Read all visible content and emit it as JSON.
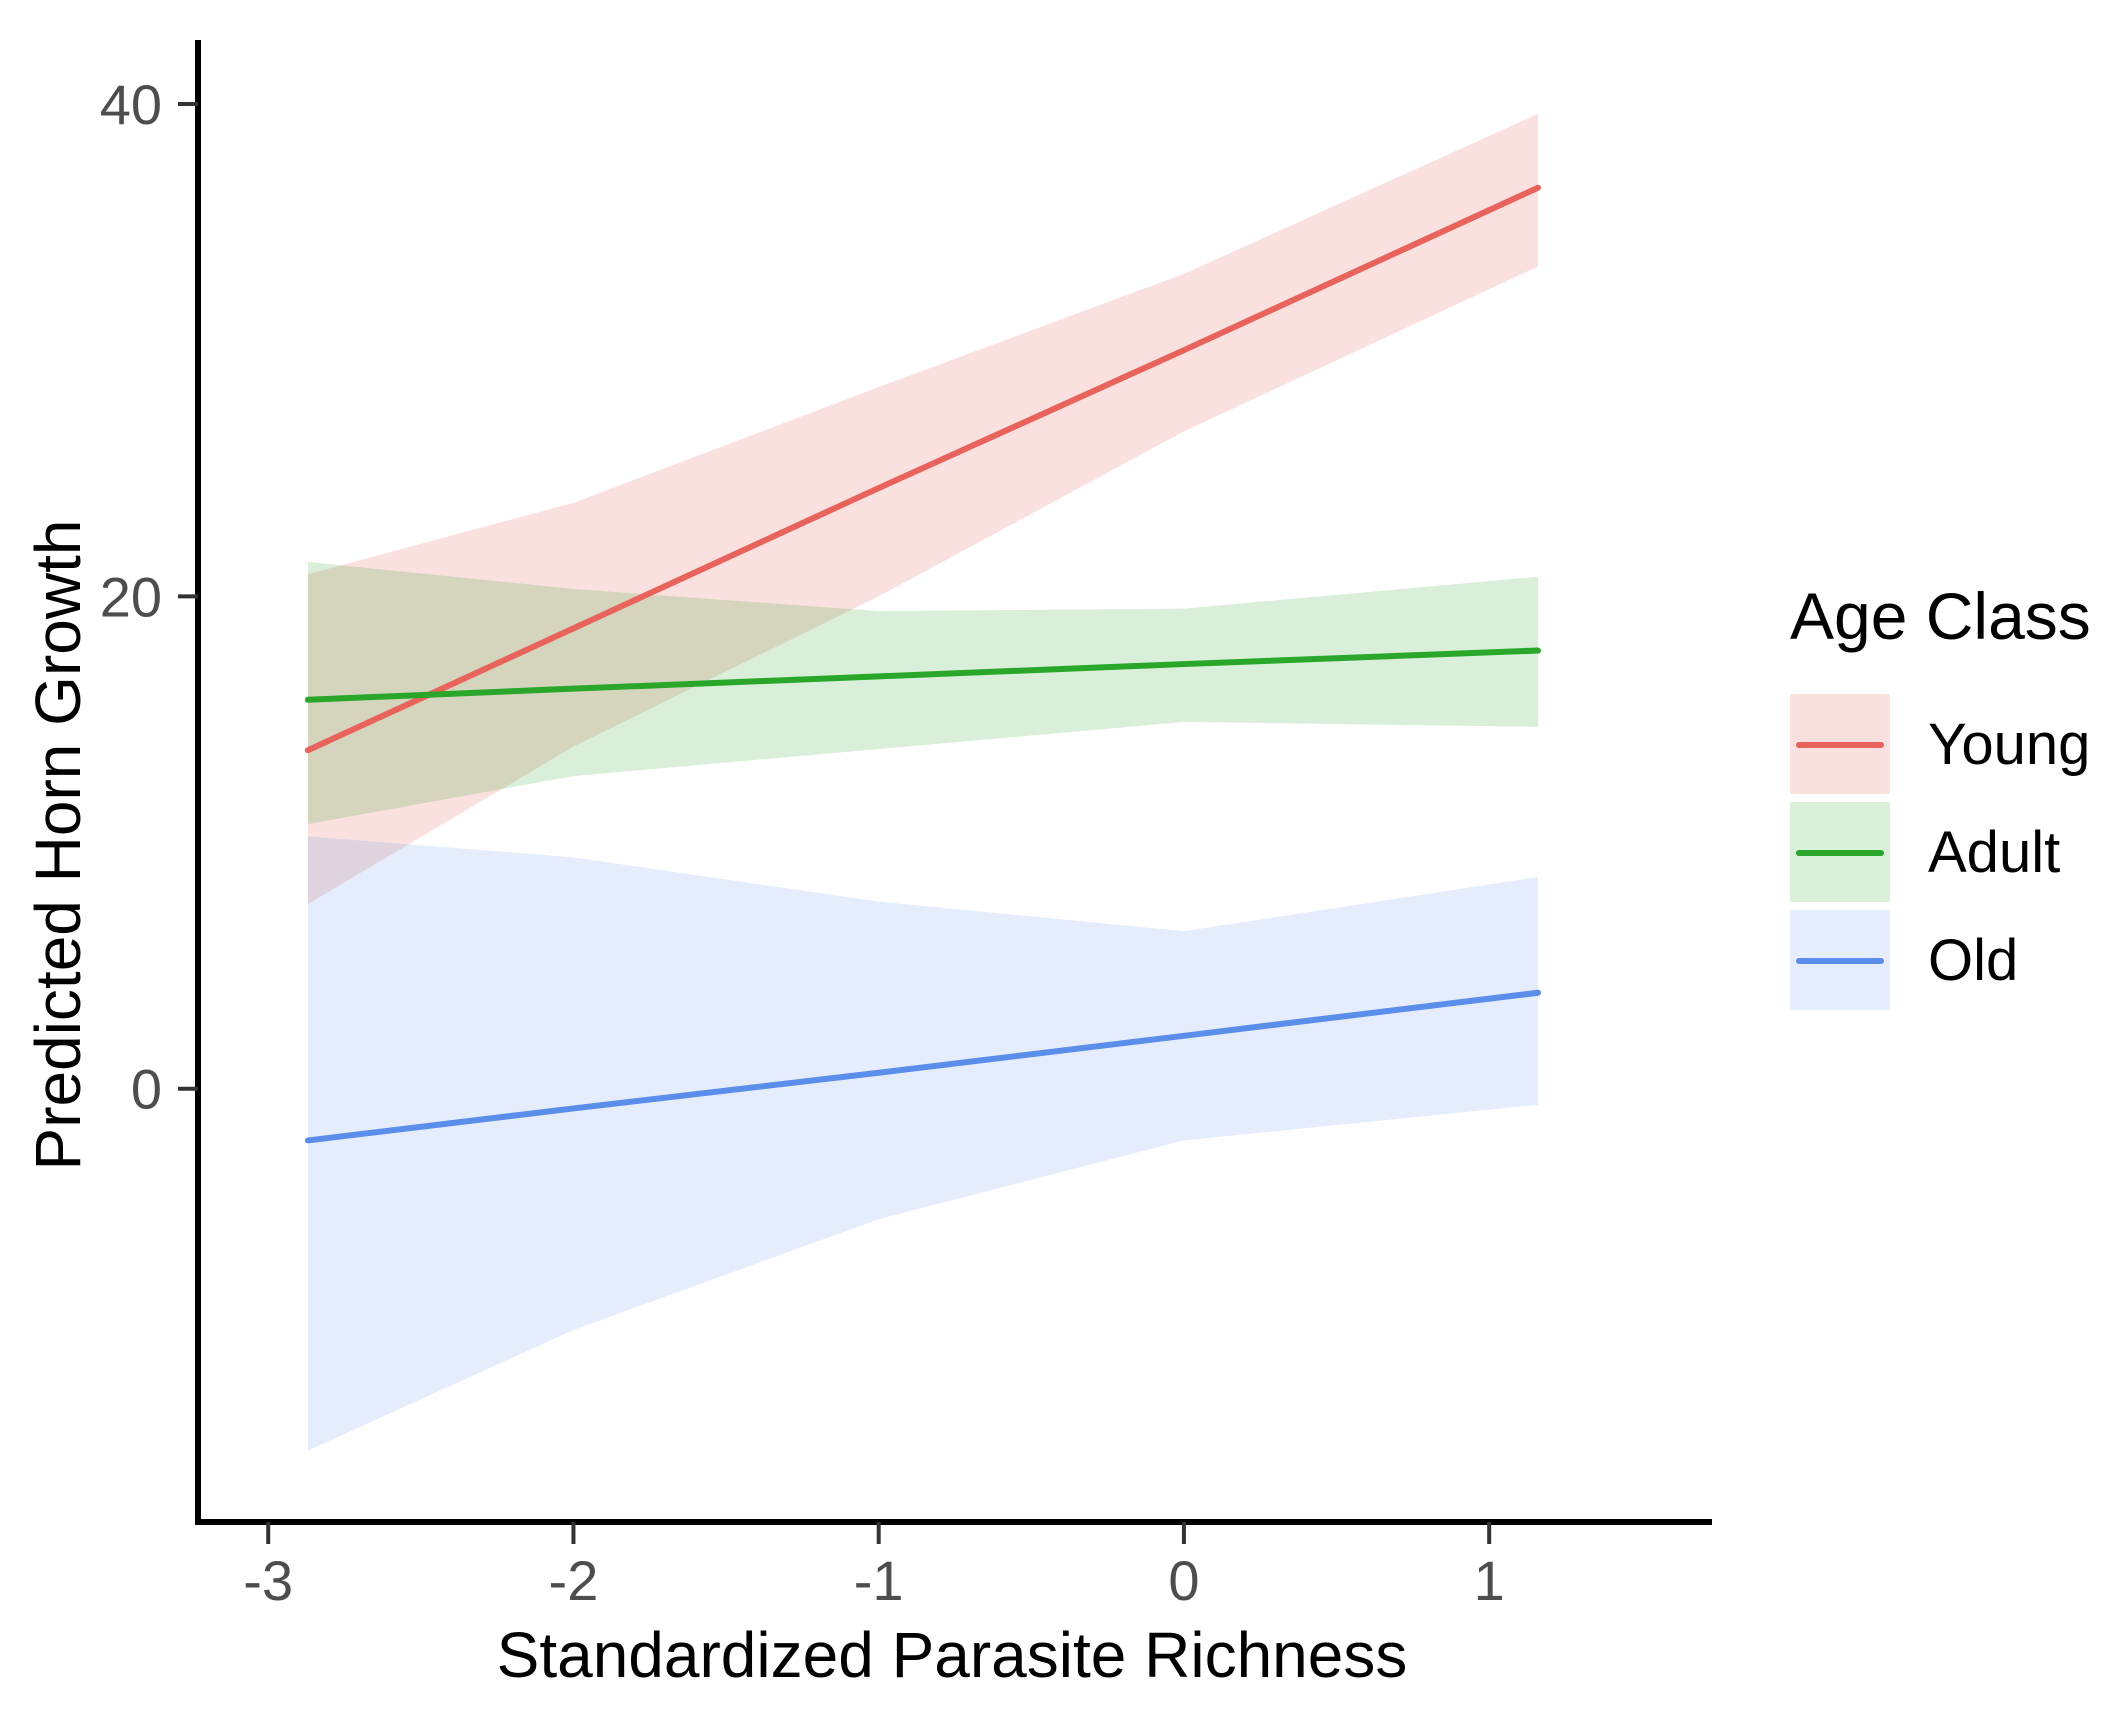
{
  "figure": {
    "background": "#ffffff"
  },
  "axes": {
    "xlabel": "Standardized Parasite Richness",
    "ylabel": "Predicted Horn Growth",
    "x_tick_labels": [
      "-3",
      "-2",
      "-1",
      "0",
      "1"
    ],
    "x_tick_values": [
      -3,
      -2,
      -1,
      0,
      1
    ],
    "y_tick_labels": [
      "0",
      "20",
      "40"
    ],
    "y_tick_values": [
      0,
      20,
      40
    ],
    "tick_label_color": "#4d4d4d",
    "axis_line_color": "#000000"
  },
  "legend": {
    "title": "Age Class",
    "entries": [
      {
        "label": "Young",
        "line_color": "#e8635c",
        "fill_color": "rgba(232,99,92,0.2)"
      },
      {
        "label": "Adult",
        "line_color": "#2aa62a",
        "fill_color": "rgba(42,166,42,0.18)"
      },
      {
        "label": "Old",
        "line_color": "#5b8deb",
        "fill_color": "rgba(91,141,235,0.16)"
      }
    ]
  },
  "chart_data": {
    "type": "line",
    "title": "",
    "xlabel": "Standardized Parasite Richness",
    "ylabel": "Predicted Horn Growth",
    "xlim": [
      -3.23,
      1.73
    ],
    "ylim": [
      -17.6,
      42.6
    ],
    "grid": false,
    "legend_position": "right",
    "legend_title": "Age Class",
    "series": [
      {
        "name": "Young",
        "line_color": "#e8635c",
        "fill_color": "rgba(232,99,92,0.2)",
        "x": [
          -2.87,
          -2.0,
          -1.0,
          0.0,
          1.16
        ],
        "y": [
          13.75,
          18.7,
          24.4,
          30.0,
          36.6
        ],
        "ymin": [
          7.5,
          13.9,
          20.0,
          26.7,
          33.4
        ],
        "ymax": [
          20.9,
          23.8,
          28.5,
          33.1,
          39.6
        ]
      },
      {
        "name": "Adult",
        "line_color": "#2aa62a",
        "fill_color": "rgba(42,166,42,0.18)",
        "x": [
          -2.87,
          -2.0,
          -1.0,
          0.0,
          1.16
        ],
        "y": [
          15.8,
          16.25,
          16.75,
          17.25,
          17.8
        ],
        "ymin": [
          10.75,
          12.7,
          13.8,
          14.9,
          14.7
        ],
        "ymax": [
          21.4,
          20.3,
          19.4,
          19.5,
          20.8
        ]
      },
      {
        "name": "Old",
        "line_color": "#5b8deb",
        "fill_color": "rgba(91,141,235,0.16)",
        "x": [
          -2.87,
          -2.0,
          -1.0,
          0.0,
          1.16
        ],
        "y": [
          -2.1,
          -0.8,
          0.65,
          2.15,
          3.9
        ],
        "ymin": [
          -14.7,
          -9.8,
          -5.3,
          -2.1,
          -0.65
        ],
        "ymax": [
          10.25,
          9.4,
          7.6,
          6.4,
          8.6
        ]
      }
    ]
  }
}
